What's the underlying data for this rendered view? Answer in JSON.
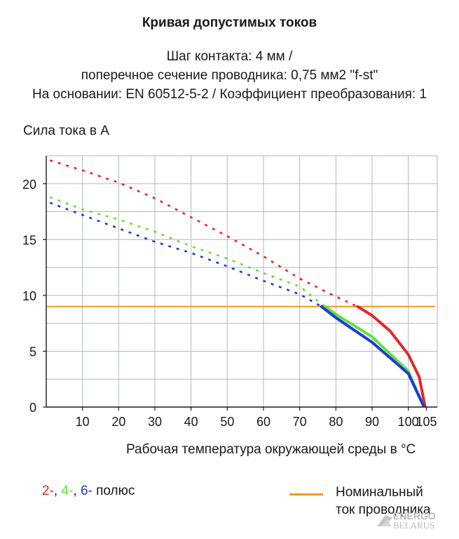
{
  "header": {
    "title": "Кривая допустимых токов",
    "subtitle_lines": [
      "Шаг контакта: 4 мм /",
      "поперечное сечение проводника: 0,75 мм2 \"f-st\"",
      "На основании: EN 60512-5-2 / Коэффициент преобразования: 1"
    ]
  },
  "chart_data": {
    "type": "line",
    "ylabel": "Сила тока в А",
    "xlabel": "Рабочая температура окружающей среды в °C",
    "xlim": [
      0,
      108
    ],
    "ylim": [
      0,
      22.5
    ],
    "x_ticks": [
      10,
      20,
      30,
      40,
      50,
      60,
      70,
      80,
      90,
      100,
      105
    ],
    "x_tick_labels": [
      "10",
      "20",
      "30",
      "40",
      "50",
      "60",
      "70",
      "80",
      "90",
      "100",
      "105"
    ],
    "y_ticks": [
      0,
      5,
      10,
      15,
      20
    ],
    "y_tick_labels": [
      "0",
      "5",
      "10",
      "15",
      "20"
    ],
    "grid": true,
    "colors": {
      "red": "#e8262a",
      "green": "#5fe33a",
      "blue": "#1f3ad8",
      "orange": "#f59a1a",
      "grid": "#aeb8c8",
      "axis": "#1a1a1a"
    },
    "series": [
      {
        "name": "2-",
        "color": "#e8262a",
        "dashed_points": [
          [
            1,
            22.1
          ],
          [
            10,
            21.2
          ],
          [
            20,
            20.1
          ],
          [
            30,
            18.7
          ],
          [
            40,
            17.0
          ],
          [
            50,
            15.3
          ],
          [
            60,
            13.5
          ],
          [
            70,
            11.5
          ],
          [
            80,
            9.9
          ],
          [
            86,
            9.0
          ]
        ],
        "solid_points": [
          [
            86,
            9.0
          ],
          [
            90,
            8.2
          ],
          [
            95,
            6.8
          ],
          [
            100,
            4.7
          ],
          [
            103,
            2.7
          ],
          [
            104.6,
            0.1
          ]
        ]
      },
      {
        "name": "4-",
        "color": "#5fe33a",
        "dashed_points": [
          [
            1,
            18.8
          ],
          [
            10,
            17.7
          ],
          [
            20,
            16.8
          ],
          [
            30,
            15.7
          ],
          [
            40,
            14.4
          ],
          [
            50,
            13.3
          ],
          [
            60,
            12.0
          ],
          [
            70,
            10.8
          ],
          [
            77,
            9.0
          ]
        ],
        "solid_points": [
          [
            77,
            9.0
          ],
          [
            80,
            8.3
          ],
          [
            90,
            6.3
          ],
          [
            100,
            3.2
          ],
          [
            104.2,
            0.1
          ]
        ]
      },
      {
        "name": "6-",
        "color": "#1f3ad8",
        "dashed_points": [
          [
            1,
            18.3
          ],
          [
            10,
            17.2
          ],
          [
            20,
            16.0
          ],
          [
            30,
            14.8
          ],
          [
            40,
            13.8
          ],
          [
            50,
            12.6
          ],
          [
            60,
            11.3
          ],
          [
            70,
            10.1
          ],
          [
            76,
            9.0
          ]
        ],
        "solid_points": [
          [
            76,
            9.0
          ],
          [
            80,
            8.0
          ],
          [
            90,
            5.8
          ],
          [
            100,
            3.0
          ],
          [
            104.2,
            0.1
          ]
        ]
      }
    ],
    "reference_line": {
      "name": "Номинальный ток проводника",
      "y": 9,
      "color": "#f59a1a"
    }
  },
  "legend": {
    "pole_2": "2-",
    "sep_1": ", ",
    "pole_4": "4-",
    "sep_2": ", ",
    "pole_6": "6-",
    "pole_suffix": " полюс",
    "nominal_line1": "Номинальный",
    "nominal_line2": "ток проводника"
  },
  "watermark": {
    "line1": "ENERGO",
    "line2": "BELARUS"
  }
}
